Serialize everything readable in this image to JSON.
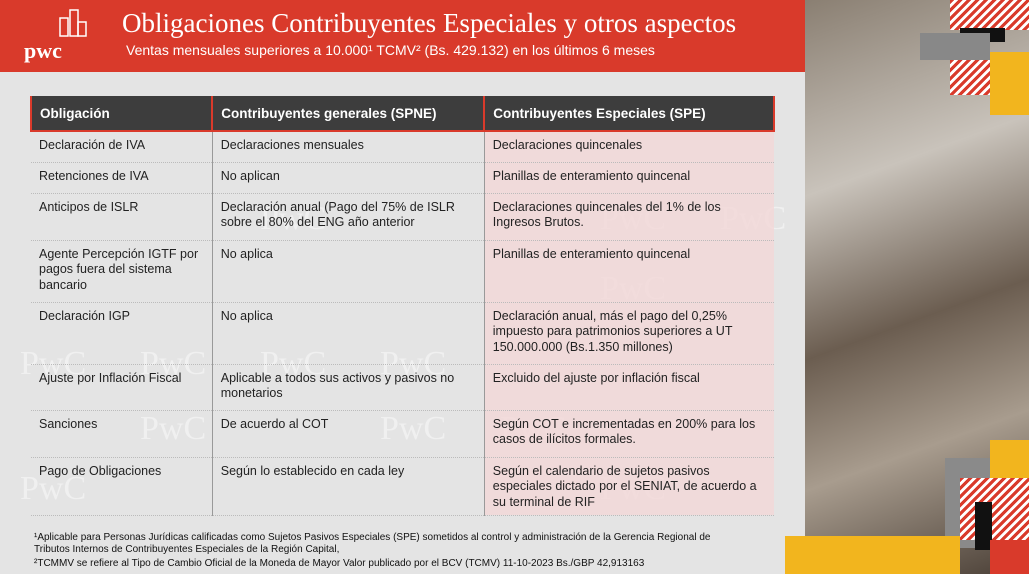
{
  "header": {
    "logo": "pwc",
    "title": "Obligaciones Contribuyentes Especiales y otros aspectos",
    "subtitle": "Ventas mensuales superiores a 10.000¹ TCMV² (Bs. 429.132) en los últimos 6 meses"
  },
  "watermark": "PwC",
  "table": {
    "columns": [
      "Obligación",
      "Contribuyentes generales (SPNE)",
      "Contribuyentes Especiales (SPE)"
    ],
    "rows": [
      [
        "Declaración de IVA",
        "Declaraciones mensuales",
        "Declaraciones quincenales"
      ],
      [
        "Retenciones de IVA",
        "No aplican",
        "Planillas de enteramiento quincenal"
      ],
      [
        "Anticipos de ISLR",
        "Declaración anual (Pago del 75% de ISLR sobre el 80% del ENG año anterior",
        "Declaraciones quincenales del 1% de los Ingresos Brutos."
      ],
      [
        "Agente Percepción IGTF por pagos fuera del sistema bancario",
        "No aplica",
        "Planillas de enteramiento quincenal"
      ],
      [
        "Declaración IGP",
        "No aplica",
        "Declaración anual, más el pago del 0,25% impuesto para patrimonios superiores a UT 150.000.000 (Bs.1.350 millones)"
      ],
      [
        "Ajuste por Inflación Fiscal",
        "Aplicable a todos sus activos y pasivos no monetarios",
        "Excluido del ajuste por inflación fiscal"
      ],
      [
        "Sanciones",
        "De acuerdo al COT",
        "Según COT e incrementadas en 200% para los casos de ilícitos formales."
      ],
      [
        "Pago de Obligaciones",
        "Según lo establecido en cada ley",
        "Según el calendario de sujetos pasivos especiales dictado por el SENIAT, de acuerdo a su terminal de RIF"
      ]
    ]
  },
  "footnotes": [
    "¹Aplicable para Personas Jurídicas calificadas como Sujetos Pasivos Especiales (SPE) sometidos al control y administración de la Gerencia Regional de Tributos Internos de Contribuyentes Especiales de la Región Capital,",
    "²TCMMV se refiere al Tipo de Cambio Oficial de la Moneda de Mayor Valor publicado por el BCV (TCMV)   11-10-2023 Bs./GBP 42,913163"
  ]
}
